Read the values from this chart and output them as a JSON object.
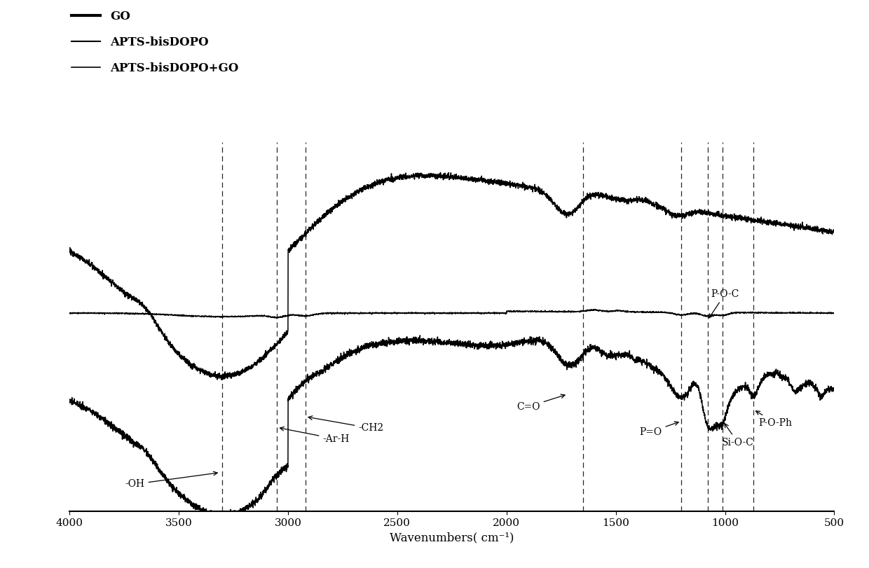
{
  "xlim_left": 4000,
  "xlim_right": 500,
  "xlabel": "Wavenumbers( cm⁻¹)",
  "xticks": [
    4000,
    3500,
    3000,
    2500,
    2000,
    1500,
    1000,
    500
  ],
  "xticklabels": [
    "4000",
    "3500",
    "3000",
    "2500",
    "2000",
    "1500",
    "1000",
    "500"
  ],
  "legend_labels": [
    "GO",
    "APTS-bisDOPO",
    "APTS-bisDOPO+GO"
  ],
  "legend_lw": [
    3.0,
    1.5,
    1.2
  ],
  "dashed_lines": [
    3300,
    3050,
    2920,
    1650,
    1200,
    1080,
    1010,
    870
  ],
  "background_color": "#ffffff"
}
